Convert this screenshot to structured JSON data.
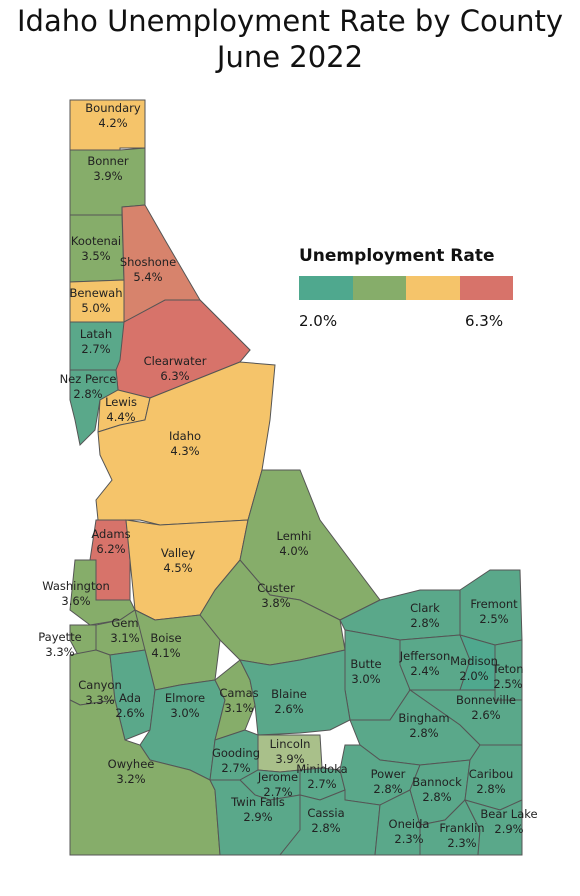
{
  "title_line1": "Idaho Unemployment Rate by County",
  "title_line2": "June 2022",
  "legend": {
    "title": "Unemployment Rate",
    "min_label": "2.0%",
    "max_label": "6.3%",
    "colors": [
      "#4fa88e",
      "#86ad6a",
      "#f5c46a",
      "#d7736a"
    ]
  },
  "counties": [
    {
      "name": "Boundary",
      "rate": "4.2%",
      "color": "#f5c46a"
    },
    {
      "name": "Bonner",
      "rate": "3.9%",
      "color": "#86ad6a"
    },
    {
      "name": "Kootenai",
      "rate": "3.5%",
      "color": "#86ad6a"
    },
    {
      "name": "Shoshone",
      "rate": "5.4%",
      "color": "#d7836c"
    },
    {
      "name": "Benewah",
      "rate": "5.0%",
      "color": "#f5c46a"
    },
    {
      "name": "Latah",
      "rate": "2.7%",
      "color": "#5aa88a"
    },
    {
      "name": "Clearwater",
      "rate": "6.3%",
      "color": "#d7736a"
    },
    {
      "name": "Nez Perce",
      "rate": "2.8%",
      "color": "#5aa88a"
    },
    {
      "name": "Lewis",
      "rate": "4.4%",
      "color": "#f5c46a"
    },
    {
      "name": "Idaho",
      "rate": "4.3%",
      "color": "#f5c46a"
    },
    {
      "name": "Adams",
      "rate": "6.2%",
      "color": "#d7736a"
    },
    {
      "name": "Valley",
      "rate": "4.5%",
      "color": "#f5c46a"
    },
    {
      "name": "Lemhi",
      "rate": "4.0%",
      "color": "#86ad6a"
    },
    {
      "name": "Washington",
      "rate": "3.6%",
      "color": "#86ad6a"
    },
    {
      "name": "Custer",
      "rate": "3.8%",
      "color": "#86ad6a"
    },
    {
      "name": "Clark",
      "rate": "2.8%",
      "color": "#5aa88a"
    },
    {
      "name": "Fremont",
      "rate": "2.5%",
      "color": "#5aa88a"
    },
    {
      "name": "Gem",
      "rate": "3.1%",
      "color": "#86ad6a"
    },
    {
      "name": "Payette",
      "rate": "3.3%",
      "color": "#86ad6a"
    },
    {
      "name": "Boise",
      "rate": "4.1%",
      "color": "#86ad6a"
    },
    {
      "name": "Jefferson",
      "rate": "2.4%",
      "color": "#5aa88a"
    },
    {
      "name": "Madison",
      "rate": "2.0%",
      "color": "#4fa88e"
    },
    {
      "name": "Teton",
      "rate": "2.5%",
      "color": "#5aa88a"
    },
    {
      "name": "Butte",
      "rate": "3.0%",
      "color": "#5aa88a"
    },
    {
      "name": "Canyon",
      "rate": "3.3%",
      "color": "#86ad6a"
    },
    {
      "name": "Ada",
      "rate": "2.6%",
      "color": "#5aa88a"
    },
    {
      "name": "Elmore",
      "rate": "3.0%",
      "color": "#5aa88a"
    },
    {
      "name": "Camas",
      "rate": "3.1%",
      "color": "#86ad6a"
    },
    {
      "name": "Blaine",
      "rate": "2.6%",
      "color": "#5aa88a"
    },
    {
      "name": "Bonneville",
      "rate": "2.6%",
      "color": "#5aa88a"
    },
    {
      "name": "Bingham",
      "rate": "2.8%",
      "color": "#5aa88a"
    },
    {
      "name": "Lincoln",
      "rate": "3.9%",
      "color": "#a9c08a"
    },
    {
      "name": "Gooding",
      "rate": "2.7%",
      "color": "#5aa88a"
    },
    {
      "name": "Owyhee",
      "rate": "3.2%",
      "color": "#86ad6a"
    },
    {
      "name": "Jerome",
      "rate": "2.7%",
      "color": "#5aa88a"
    },
    {
      "name": "Minidoka",
      "rate": "2.7%",
      "color": "#5aa88a"
    },
    {
      "name": "Power",
      "rate": "2.8%",
      "color": "#5aa88a"
    },
    {
      "name": "Bannock",
      "rate": "2.8%",
      "color": "#5aa88a"
    },
    {
      "name": "Caribou",
      "rate": "2.8%",
      "color": "#5aa88a"
    },
    {
      "name": "Twin Falls",
      "rate": "2.9%",
      "color": "#5aa88a"
    },
    {
      "name": "Cassia",
      "rate": "2.8%",
      "color": "#5aa88a"
    },
    {
      "name": "Oneida",
      "rate": "2.3%",
      "color": "#5aa88a"
    },
    {
      "name": "Franklin",
      "rate": "2.3%",
      "color": "#5aa88a"
    },
    {
      "name": "Bear Lake",
      "rate": "2.9%",
      "color": "#5aa88a"
    }
  ]
}
